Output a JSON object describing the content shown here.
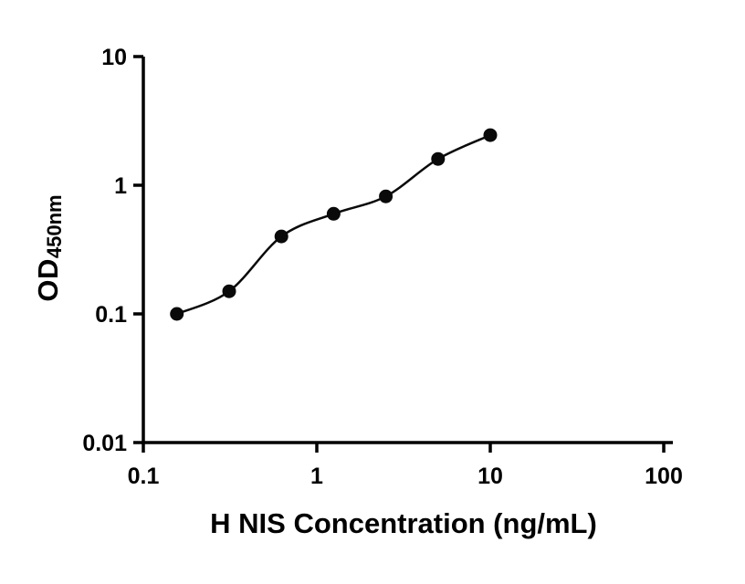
{
  "page": {
    "background": "#ffffff"
  },
  "chart_data": {
    "type": "scatter",
    "title": "",
    "xlabel": "H NIS Concentration (ng/mL)",
    "ylabel": {
      "main": "OD",
      "sub": "450nm"
    },
    "x_scale": "log",
    "y_scale": "log",
    "xlim": [
      0.1,
      100
    ],
    "ylim": [
      0.01,
      10
    ],
    "x_ticks": [
      0.1,
      1,
      10,
      100
    ],
    "x_tick_labels": [
      "0.1",
      "1",
      "10",
      "100"
    ],
    "y_ticks": [
      10,
      1,
      0.1,
      0.01
    ],
    "y_tick_labels": [
      "10",
      "1",
      "0.1",
      "0.01"
    ],
    "grid": false,
    "legend": null,
    "points": {
      "x": [
        0.156,
        0.3125,
        0.625,
        1.25,
        2.5,
        5,
        10
      ],
      "y": [
        0.1,
        0.15,
        0.4,
        0.6,
        0.82,
        1.6,
        2.45
      ]
    },
    "fit_line": "smooth curve through points",
    "axis_color": "#000000",
    "marker_color": "#0a0a0a",
    "line_color": "#0a0a0a",
    "marker_radius": 7.5
  }
}
